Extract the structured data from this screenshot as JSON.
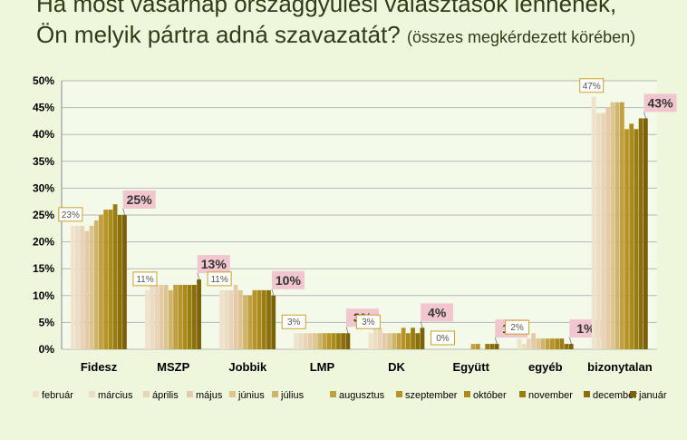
{
  "header": {
    "line1": "Ha most vasárnap országgyűlési választások lennének,",
    "line2": "Ön melyik pártra adná szavazatát?",
    "line2_sub": "(összes megkérdezett körében)"
  },
  "colors": {
    "background": "#eef7dc",
    "first_label_border": "#c9a227",
    "last_label_fill": "#f2c6cf",
    "series": [
      "#efe3cc",
      "#ebdcc4",
      "#e8d5b8",
      "#e5c9a9",
      "#dcc58f",
      "#cfb56b",
      "#c0a040",
      "#b89328",
      "#a98a1a",
      "#9a7d12",
      "#8a6f0c",
      "#7a6108"
    ]
  },
  "chart_data": {
    "type": "bar",
    "ylim": [
      0,
      50
    ],
    "yticks": [
      "0%",
      "5%",
      "10%",
      "15%",
      "20%",
      "25%",
      "30%",
      "35%",
      "40%",
      "45%",
      "50%"
    ],
    "grid": true,
    "legend_position": "bottom",
    "categories": [
      "Fidesz",
      "MSZP",
      "Jobbik",
      "LMP",
      "DK",
      "Együtt",
      "egyéb",
      "bizonytalan"
    ],
    "series": [
      {
        "name": "február",
        "values": [
          23,
          11,
          11,
          3,
          3,
          0,
          2,
          47
        ]
      },
      {
        "name": "március",
        "values": [
          23,
          12,
          11,
          3,
          4,
          0,
          1,
          44
        ]
      },
      {
        "name": "április",
        "values": [
          23,
          12,
          11,
          3,
          4,
          0,
          2,
          44
        ]
      },
      {
        "name": "május",
        "values": [
          22,
          12,
          12,
          3,
          3,
          0,
          3,
          45
        ]
      },
      {
        "name": "június",
        "values": [
          23,
          12,
          11,
          3,
          3,
          0,
          2,
          46
        ]
      },
      {
        "name": "július",
        "values": [
          24,
          11,
          10,
          3,
          3,
          0,
          2,
          46
        ]
      },
      {
        "name": "augusztus",
        "values": [
          25,
          12,
          10,
          3,
          3,
          1,
          2,
          46
        ]
      },
      {
        "name": "szeptember",
        "values": [
          26,
          12,
          11,
          3,
          4,
          1,
          2,
          41
        ]
      },
      {
        "name": "október",
        "values": [
          26,
          12,
          11,
          3,
          3,
          0,
          2,
          42
        ]
      },
      {
        "name": "november",
        "values": [
          27,
          12,
          11,
          3,
          4,
          1,
          2,
          41
        ]
      },
      {
        "name": "december",
        "values": [
          25,
          12,
          11,
          3,
          3,
          1,
          1,
          43
        ]
      },
      {
        "name": "január",
        "values": [
          25,
          13,
          10,
          3,
          4,
          1,
          1,
          43
        ]
      }
    ],
    "first_labels": [
      "23%",
      "11%",
      "11%",
      "3%",
      "3%",
      "0%",
      "2%",
      "47%"
    ],
    "last_labels": [
      "25%",
      "13%",
      "10%",
      "3%",
      "4%",
      "1%",
      "1%",
      "43%"
    ]
  }
}
